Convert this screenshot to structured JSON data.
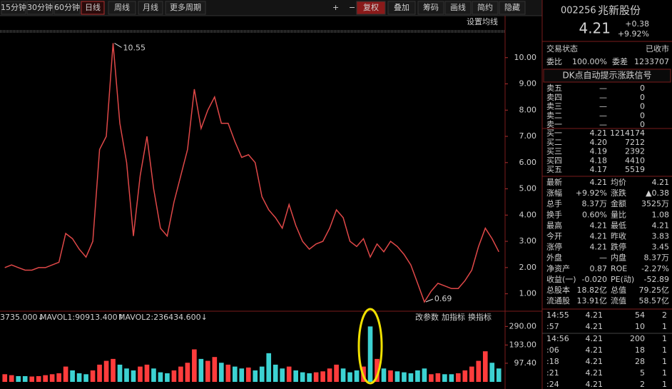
{
  "toolbar": {
    "periods": [
      "15分钟",
      "30分钟",
      "60分钟",
      "日线",
      "周线",
      "月线",
      "更多周期"
    ],
    "tools": [
      "复权",
      "叠加",
      "筹码",
      "画线",
      "简约",
      "隐藏"
    ],
    "ma_setting": "设置均线"
  },
  "chart_data": [
    {
      "type": "line",
      "color": "#e04848",
      "categories": [
        null,
        null,
        null,
        null,
        null,
        null,
        null,
        null,
        null,
        null,
        null,
        null,
        null,
        null,
        null,
        null,
        null,
        null,
        null,
        null,
        null,
        null,
        null,
        null,
        null,
        null,
        null,
        null,
        null,
        null,
        null,
        null,
        null,
        null,
        null,
        null,
        null,
        null,
        null,
        null,
        null,
        null,
        null,
        null,
        null,
        null,
        null,
        null,
        null,
        null,
        null,
        null,
        null,
        null,
        null,
        null,
        null,
        null,
        null,
        null,
        null,
        null,
        null,
        null,
        null,
        null,
        null,
        null,
        null,
        null,
        null,
        null,
        null,
        null
      ],
      "values": [
        2.0,
        2.1,
        2.0,
        1.9,
        1.9,
        2.0,
        2.0,
        2.1,
        2.2,
        3.3,
        3.1,
        2.7,
        2.4,
        3.0,
        6.5,
        7.0,
        10.55,
        7.5,
        6.0,
        3.2,
        5.5,
        7.0,
        5.0,
        3.5,
        3.2,
        4.5,
        5.5,
        6.5,
        8.8,
        7.3,
        8.0,
        8.5,
        7.5,
        7.5,
        6.8,
        6.2,
        6.3,
        6.0,
        4.7,
        4.2,
        3.9,
        3.5,
        4.4,
        3.6,
        3.0,
        2.7,
        2.9,
        3.0,
        3.5,
        4.2,
        3.9,
        3.0,
        2.8,
        3.1,
        2.4,
        2.9,
        2.6,
        3.0,
        2.8,
        2.5,
        2.1,
        1.4,
        0.69,
        1.1,
        1.4,
        1.3,
        1.2,
        1.2,
        1.5,
        1.9,
        2.8,
        3.5,
        3.1,
        2.6
      ],
      "max_label": "10.55",
      "min_label": "0.69",
      "ylim": [
        0.5,
        11
      ],
      "yticks": [
        {
          "value": 1,
          "label": "1.00"
        },
        {
          "value": 2,
          "label": "2.00"
        },
        {
          "value": 3,
          "label": "3.00"
        },
        {
          "value": 4,
          "label": "4.00"
        },
        {
          "value": 5,
          "label": "5.00"
        },
        {
          "value": 6,
          "label": "6.00"
        },
        {
          "value": 7,
          "label": "7.00"
        },
        {
          "value": 8,
          "label": "8.00"
        },
        {
          "value": 9,
          "label": "9.00"
        },
        {
          "value": 10,
          "label": "10.00"
        }
      ]
    },
    {
      "type": "bar",
      "colors": [
        "#ff3c3c",
        "#3cd2d2"
      ],
      "values": [
        40,
        35,
        30,
        30,
        28,
        30,
        35,
        40,
        45,
        80,
        60,
        45,
        40,
        60,
        90,
        110,
        120,
        90,
        70,
        60,
        80,
        90,
        70,
        50,
        45,
        60,
        80,
        100,
        170,
        120,
        110,
        130,
        100,
        90,
        80,
        70,
        75,
        60,
        80,
        150,
        90,
        70,
        80,
        60,
        50,
        45,
        50,
        55,
        70,
        90,
        70,
        50,
        60,
        80,
        290,
        120,
        70,
        60,
        55,
        50,
        45,
        60,
        70,
        40,
        45,
        40,
        40,
        45,
        60,
        80,
        110,
        160,
        100,
        70
      ],
      "ylim": [
        0,
        310
      ],
      "yticks": [
        {
          "value": 97.4,
          "label": "97.40"
        },
        {
          "value": 193,
          "label": "193.00"
        },
        {
          "value": 290,
          "label": "290.00"
        }
      ],
      "legend": [
        "3735.000↓",
        "MAVOL1:90913.400↑",
        "MAVOL2:236434.600↓"
      ],
      "tools": [
        "改参数",
        "加指标",
        "换指标"
      ]
    }
  ],
  "quote": {
    "code": "002256",
    "name": "兆新股份",
    "price": "4.21",
    "change": "+0.38",
    "pct": "+9.92%",
    "status": [
      "交易状态",
      "已收市"
    ],
    "ratio": [
      "委比",
      "100.00%",
      "委差",
      "1233707"
    ],
    "banner": "DK点自动提示涨跌信号",
    "asks": [
      [
        "卖五",
        "—",
        "0"
      ],
      [
        "卖四",
        "—",
        "0"
      ],
      [
        "卖三",
        "—",
        "0"
      ],
      [
        "卖二",
        "—",
        "0"
      ],
      [
        "卖一",
        "—",
        "0"
      ]
    ],
    "bids": [
      [
        "买一",
        "4.21",
        "1214174"
      ],
      [
        "买二",
        "4.20",
        "7212"
      ],
      [
        "买三",
        "4.19",
        "2392"
      ],
      [
        "买四",
        "4.18",
        "4410"
      ],
      [
        "买五",
        "4.17",
        "5519"
      ]
    ],
    "stats": [
      [
        "最新",
        "4.21",
        "均价",
        "4.21"
      ],
      [
        "涨幅",
        "+9.92%",
        "涨跌",
        "▲0.38"
      ],
      [
        "总手",
        "8.37万",
        "金额",
        "3525万"
      ],
      [
        "换手",
        "0.60%",
        "量比",
        "1.08"
      ],
      [
        "最高",
        "4.21",
        "最低",
        "4.21"
      ],
      [
        "今开",
        "4.21",
        "昨收",
        "3.83"
      ],
      [
        "涨停",
        "4.21",
        "跌停",
        "3.45"
      ],
      [
        "外盘",
        "—",
        "内盘",
        "8.37万"
      ],
      [
        "净资产",
        "0.87",
        "ROE",
        "-2.27%"
      ],
      [
        "收益(一)",
        "-0.020",
        "PE(动)",
        "-52.89"
      ],
      [
        "总股本",
        "18.82亿",
        "总值",
        "79.25亿"
      ],
      [
        "流通股",
        "13.91亿",
        "流值",
        "58.57亿"
      ]
    ],
    "trades": [
      [
        "14:55",
        "4.21",
        "54",
        "2"
      ],
      [
        ":57",
        "4.21",
        "10",
        "1"
      ],
      [
        "14:56",
        "4.21",
        "200",
        "1"
      ],
      [
        ":06",
        "4.21",
        "18",
        "1"
      ],
      [
        ":18",
        "4.21",
        "28",
        "1"
      ],
      [
        ":21",
        "4.21",
        "5",
        "1"
      ],
      [
        ":24",
        "4.21",
        "2",
        "1"
      ]
    ]
  }
}
